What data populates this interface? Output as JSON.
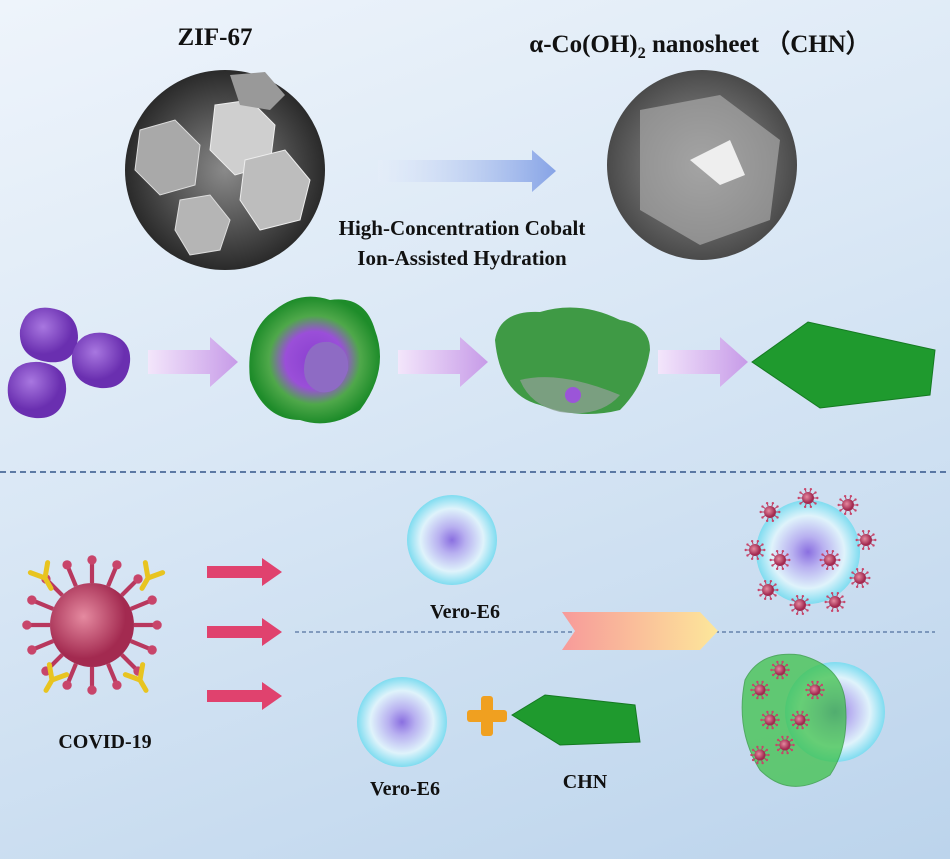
{
  "top": {
    "left_title": "ZIF-67",
    "right_title_prefix": "α-Co(OH)",
    "right_title_sub": "2",
    "right_title_suffix": " nanosheet （CHN）",
    "process_line1": "High-Concentration Cobalt",
    "process_line2": "Ion-Assisted Hydration"
  },
  "bottom": {
    "virus_label": "COVID-19",
    "cell_label_top": "Vero-E6",
    "cell_label_bottom": "Vero-E6",
    "sheet_label": "CHN"
  },
  "colors": {
    "zif_purple": "#7b3fbf",
    "chn_green": "#1f9a2e",
    "arrow_blue": "#8aa6e8",
    "arrow_red": "#e0426e",
    "virus_red": "#c8456a"
  }
}
